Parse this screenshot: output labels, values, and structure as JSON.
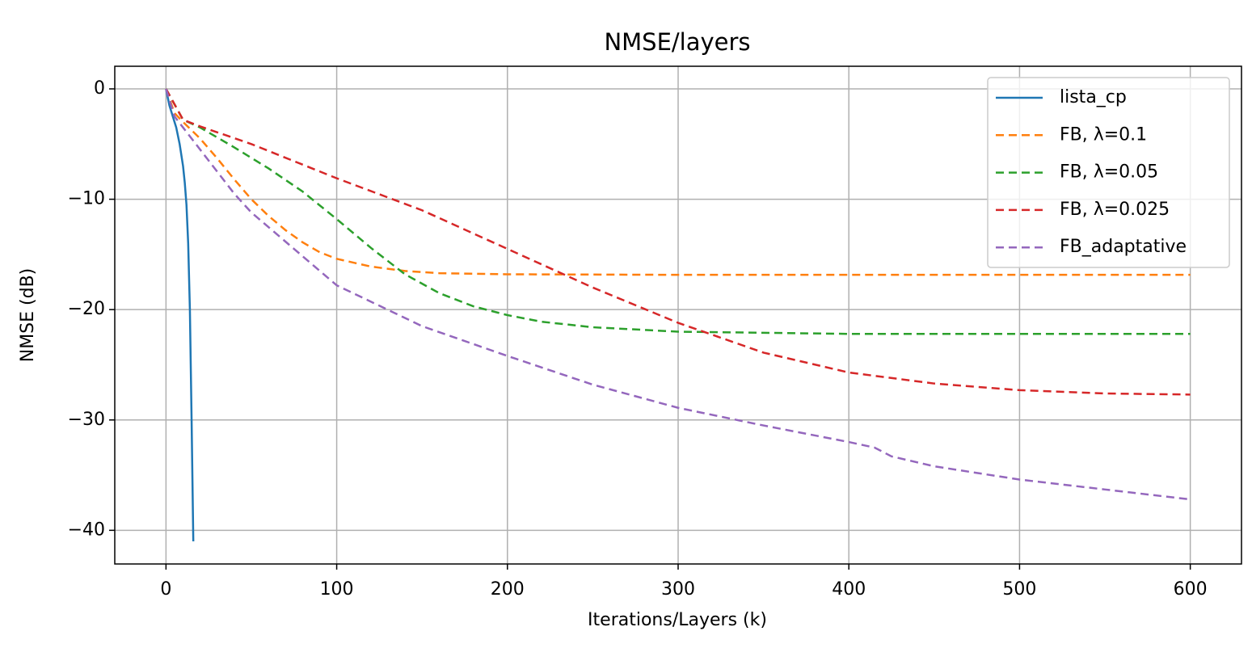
{
  "chart_data": {
    "type": "line",
    "title": "NMSE/layers",
    "xlabel": "Iterations/Layers (k)",
    "ylabel": "NMSE (dB)",
    "xlim": [
      -30,
      630
    ],
    "ylim": [
      -43.05,
      2.05
    ],
    "xticks": [
      0,
      100,
      200,
      300,
      400,
      500,
      600
    ],
    "yticks": [
      {
        "value": -40,
        "label": "−40"
      },
      {
        "value": -30,
        "label": "−30"
      },
      {
        "value": -20,
        "label": "−20"
      },
      {
        "value": -10,
        "label": "−10"
      },
      0
    ],
    "grid": true,
    "legend": "upper right",
    "series": [
      {
        "name": "lista_cp",
        "color": "#1f77b4",
        "dashed": false,
        "x": [
          0,
          2,
          4,
          6,
          8,
          10,
          11,
          12,
          13,
          14,
          15,
          16
        ],
        "values": [
          0,
          -1.5,
          -2.5,
          -3.5,
          -5,
          -7,
          -8.5,
          -10.5,
          -14,
          -20,
          -30,
          -41
        ]
      },
      {
        "name": "FB, λ=0.1",
        "color": "#ff7f0e",
        "dashed": true,
        "x": [
          0,
          5,
          10,
          20,
          30,
          40,
          50,
          60,
          70,
          80,
          90,
          100,
          120,
          140,
          160,
          200,
          300,
          400,
          600
        ],
        "values": [
          0,
          -2.2,
          -3,
          -4.5,
          -6.3,
          -8.2,
          -10,
          -11.5,
          -12.8,
          -13.9,
          -14.8,
          -15.4,
          -16.1,
          -16.5,
          -16.7,
          -16.8,
          -16.85,
          -16.85,
          -16.85
        ]
      },
      {
        "name": "FB, λ=0.05",
        "color": "#2ca02c",
        "dashed": true,
        "x": [
          0,
          10,
          20,
          40,
          60,
          80,
          100,
          120,
          140,
          160,
          180,
          200,
          220,
          250,
          300,
          350,
          400,
          600
        ],
        "values": [
          0,
          -2.8,
          -3.5,
          -5.3,
          -7.2,
          -9.3,
          -11.8,
          -14.4,
          -16.8,
          -18.5,
          -19.7,
          -20.5,
          -21.1,
          -21.6,
          -22,
          -22.1,
          -22.2,
          -22.2
        ]
      },
      {
        "name": "FB, λ=0.025",
        "color": "#d62728",
        "dashed": true,
        "x": [
          0,
          10,
          20,
          50,
          100,
          150,
          200,
          250,
          300,
          350,
          400,
          450,
          500,
          550,
          600
        ],
        "values": [
          0,
          -2.8,
          -3.4,
          -5,
          -8.1,
          -11,
          -14.5,
          -18,
          -21.2,
          -23.9,
          -25.7,
          -26.7,
          -27.3,
          -27.6,
          -27.7
        ]
      },
      {
        "name": "FB_adaptative",
        "color": "#9467bd",
        "dashed": true,
        "x": [
          0,
          5,
          10,
          20,
          30,
          40,
          50,
          75,
          100,
          150,
          200,
          225,
          250,
          300,
          350,
          400,
          415,
          425,
          450,
          500,
          550,
          600
        ],
        "values": [
          0,
          -2.5,
          -3.5,
          -5.5,
          -7.5,
          -9.5,
          -11.2,
          -14.5,
          -17.8,
          -21.5,
          -24.2,
          -25.5,
          -26.8,
          -28.9,
          -30.5,
          -32,
          -32.5,
          -33.3,
          -34.2,
          -35.4,
          -36.3,
          -37.2
        ]
      }
    ]
  }
}
